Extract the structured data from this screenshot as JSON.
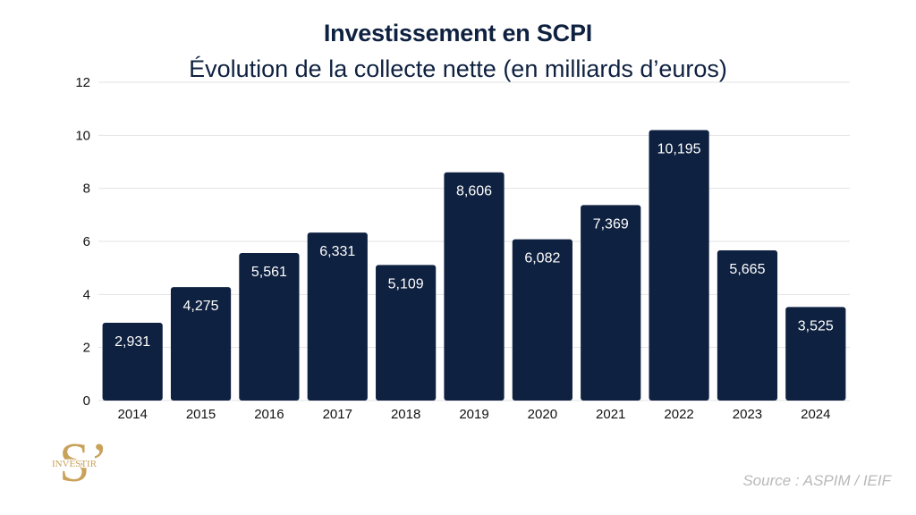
{
  "chart_data": {
    "type": "bar",
    "title": "Investissement en SCPI",
    "subtitle": "Évolution de la collecte nette (en milliards d’euros)",
    "categories": [
      "2014",
      "2015",
      "2016",
      "2017",
      "2018",
      "2019",
      "2020",
      "2021",
      "2022",
      "2023",
      "2024"
    ],
    "values": [
      2.931,
      4.275,
      5.561,
      6.331,
      5.109,
      8.606,
      6.082,
      7.369,
      10.195,
      5.665,
      3.525
    ],
    "value_labels": [
      "2,931",
      "4,275",
      "5,561",
      "6,331",
      "5,109",
      "8,606",
      "6,082",
      "7,369",
      "10,195",
      "5,665",
      "3,525"
    ],
    "ylim": [
      0,
      12
    ],
    "yticks": [
      0,
      2,
      4,
      6,
      8,
      10,
      12
    ],
    "grid": true,
    "bar_color": "#0f2140",
    "grid_color": "#e3e3e3"
  },
  "logo": {
    "letter": "S’",
    "text": "INVESTIR",
    "color": "#c9a25a"
  },
  "source": "Source : ASPIM / IEIF"
}
